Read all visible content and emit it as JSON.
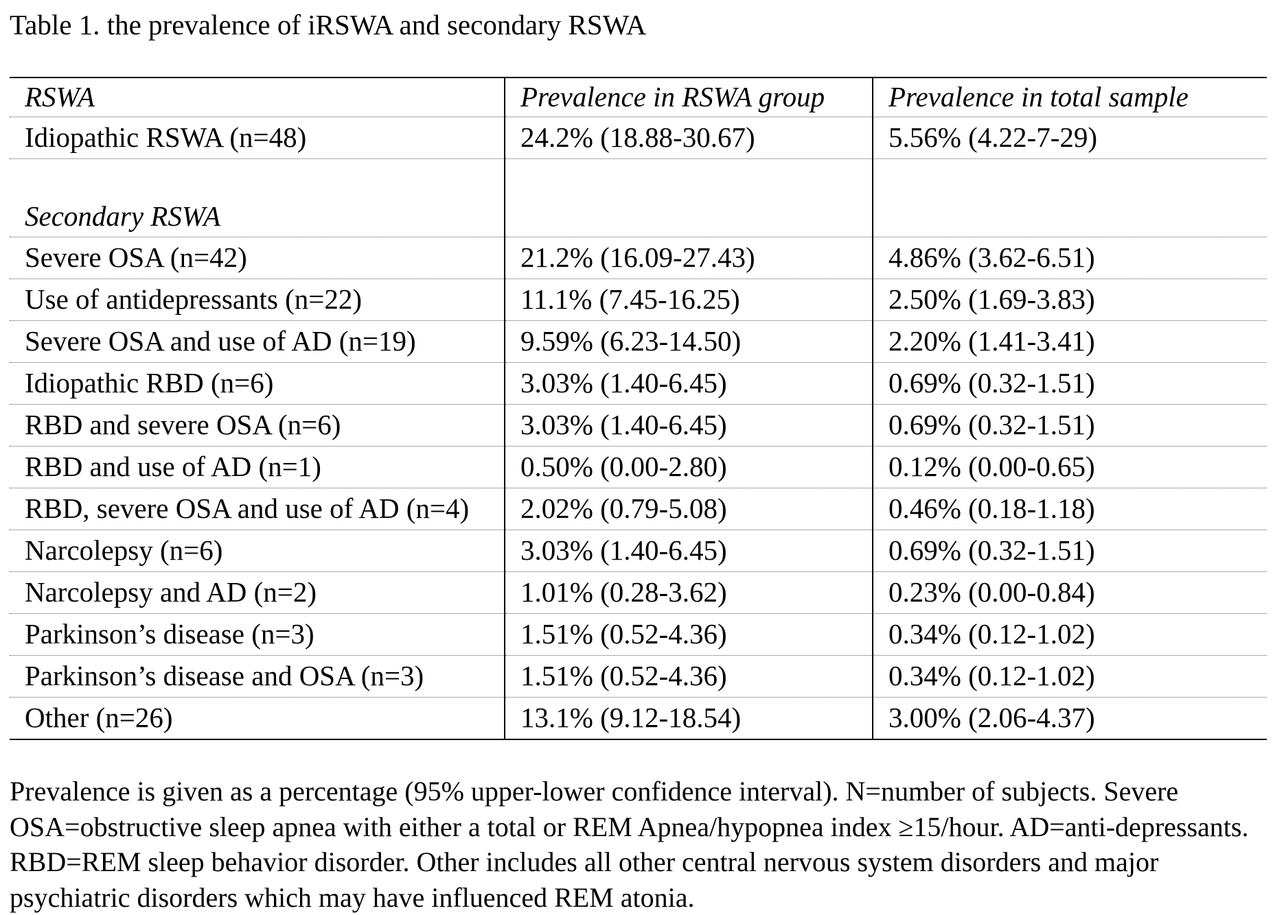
{
  "title": "Table 1. the prevalence of iRSWA and secondary RSWA",
  "table": {
    "header": [
      "RSWA",
      "Prevalence in RSWA group",
      "Prevalence in total sample"
    ],
    "sections": [
      {
        "rows": [
          [
            "Idiopathic RSWA (n=48)",
            "24.2% (18.88-30.67)",
            "5.56% (4.22-7-29)"
          ]
        ]
      },
      {
        "heading": "Secondary RSWA",
        "rows": [
          [
            "Severe OSA (n=42)",
            "21.2% (16.09-27.43)",
            "4.86% (3.62-6.51)"
          ],
          [
            "Use of antidepressants (n=22)",
            "11.1% (7.45-16.25)",
            "2.50% (1.69-3.83)"
          ],
          [
            "Severe OSA and use of AD (n=19)",
            "9.59% (6.23-14.50)",
            "2.20% (1.41-3.41)"
          ],
          [
            "Idiopathic RBD (n=6)",
            "3.03% (1.40-6.45)",
            "0.69% (0.32-1.51)"
          ],
          [
            "RBD and severe OSA (n=6)",
            "3.03% (1.40-6.45)",
            "0.69% (0.32-1.51)"
          ],
          [
            "RBD and use of AD (n=1)",
            "0.50% (0.00-2.80)",
            "0.12% (0.00-0.65)"
          ],
          [
            "RBD, severe OSA and use of AD (n=4)",
            "2.02% (0.79-5.08)",
            "0.46% (0.18-1.18)"
          ],
          [
            "Narcolepsy (n=6)",
            "3.03% (1.40-6.45)",
            "0.69% (0.32-1.51)"
          ],
          [
            "Narcolepsy and AD (n=2)",
            "1.01% (0.28-3.62)",
            "0.23% (0.00-0.84)"
          ],
          [
            "Parkinson’s disease (n=3)",
            "1.51% (0.52-4.36)",
            "0.34% (0.12-1.02)"
          ],
          [
            "Parkinson’s disease and OSA (n=3)",
            "1.51% (0.52-4.36)",
            "0.34% (0.12-1.02)"
          ],
          [
            "Other (n=26)",
            "13.1% (9.12-18.54)",
            "3.00% (2.06-4.37)"
          ]
        ]
      }
    ]
  },
  "note": "Prevalence is given as a percentage (95% upper-lower confidence interval). N=number of subjects. Severe OSA=obstructive sleep apnea with either a total or REM Apnea/hypopnea index ≥15/hour. AD=anti-depressants. RBD=REM sleep behavior disorder. Other includes all other central nervous system disorders and major psychiatric disorders which may have influenced REM atonia."
}
